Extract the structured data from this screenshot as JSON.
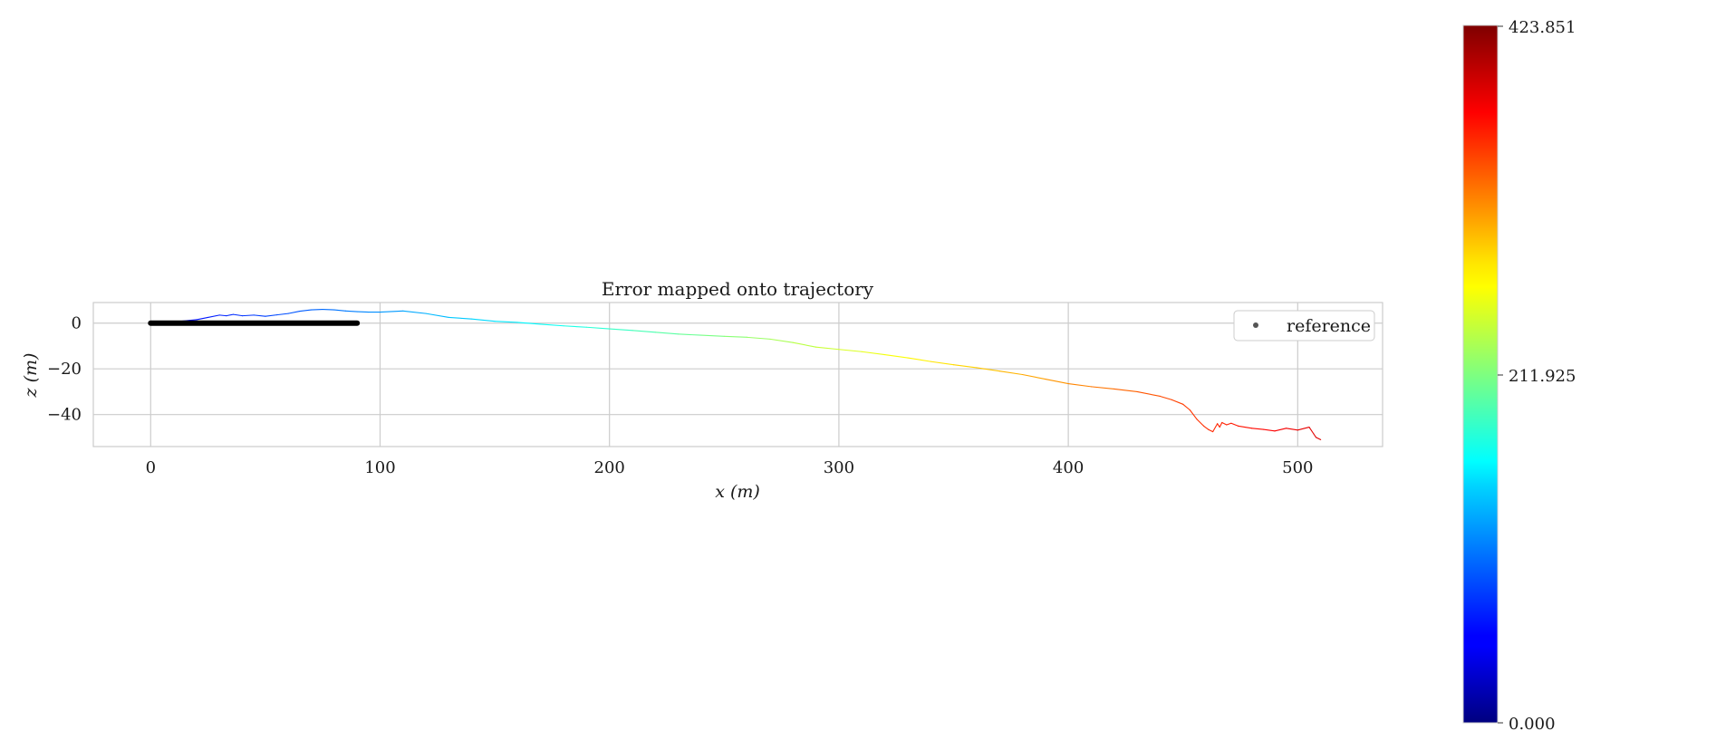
{
  "chart_data": {
    "type": "line",
    "title": "Error mapped onto trajectory",
    "xlabel": "x (m)",
    "ylabel": "z (m)",
    "xlim": [
      -25,
      537
    ],
    "ylim": [
      -54,
      9
    ],
    "xticks": [
      0,
      100,
      200,
      300,
      400,
      500
    ],
    "yticks": [
      0,
      -20,
      -40
    ],
    "grid": true,
    "legend": {
      "position": "top-right",
      "entries": [
        "reference"
      ]
    },
    "reference": {
      "name": "reference",
      "color": "#000000",
      "x": [
        0,
        90
      ],
      "z": [
        0,
        0
      ]
    },
    "trajectory": {
      "x": [
        0,
        10,
        20,
        25,
        30,
        33,
        36,
        40,
        45,
        50,
        55,
        60,
        65,
        70,
        75,
        80,
        85,
        90,
        95,
        100,
        110,
        120,
        130,
        140,
        150,
        160,
        170,
        180,
        190,
        200,
        210,
        220,
        230,
        240,
        250,
        260,
        270,
        280,
        290,
        300,
        310,
        320,
        330,
        340,
        350,
        360,
        370,
        380,
        390,
        400,
        410,
        420,
        430,
        440,
        445,
        450,
        453,
        456,
        459,
        461,
        463,
        465,
        466,
        467,
        469,
        471,
        474,
        477,
        480,
        485,
        490,
        495,
        500,
        505,
        507,
        508,
        510
      ],
      "z": [
        0,
        0.5,
        1.5,
        2.5,
        3.5,
        3.2,
        3.8,
        3.2,
        3.5,
        3.0,
        3.6,
        4.2,
        5.2,
        5.8,
        6.0,
        5.8,
        5.3,
        5.0,
        4.8,
        4.8,
        5.3,
        4.2,
        2.5,
        1.8,
        0.8,
        0.3,
        -0.5,
        -1.2,
        -1.8,
        -2.5,
        -3.2,
        -4.0,
        -4.8,
        -5.3,
        -5.8,
        -6.2,
        -7.0,
        -8.5,
        -10.5,
        -11.5,
        -12.5,
        -13.8,
        -15.2,
        -16.8,
        -18.2,
        -19.5,
        -21.0,
        -22.5,
        -24.5,
        -26.5,
        -27.8,
        -28.8,
        -30.0,
        -32.0,
        -33.5,
        -35.5,
        -38.0,
        -42.0,
        -45.0,
        -46.5,
        -47.5,
        -44.0,
        -45.5,
        -43.5,
        -44.5,
        -43.8,
        -45.0,
        -45.5,
        -46.0,
        -46.5,
        -47.2,
        -46.0,
        -46.8,
        -45.5,
        -48.5,
        -50.0,
        -51.0
      ],
      "error_range": [
        0.0,
        423.851
      ]
    },
    "colorbar": {
      "colormap": "jet",
      "min": 0.0,
      "max": 423.851,
      "tick_labels": [
        "0.000",
        "211.925",
        "423.851"
      ]
    }
  }
}
